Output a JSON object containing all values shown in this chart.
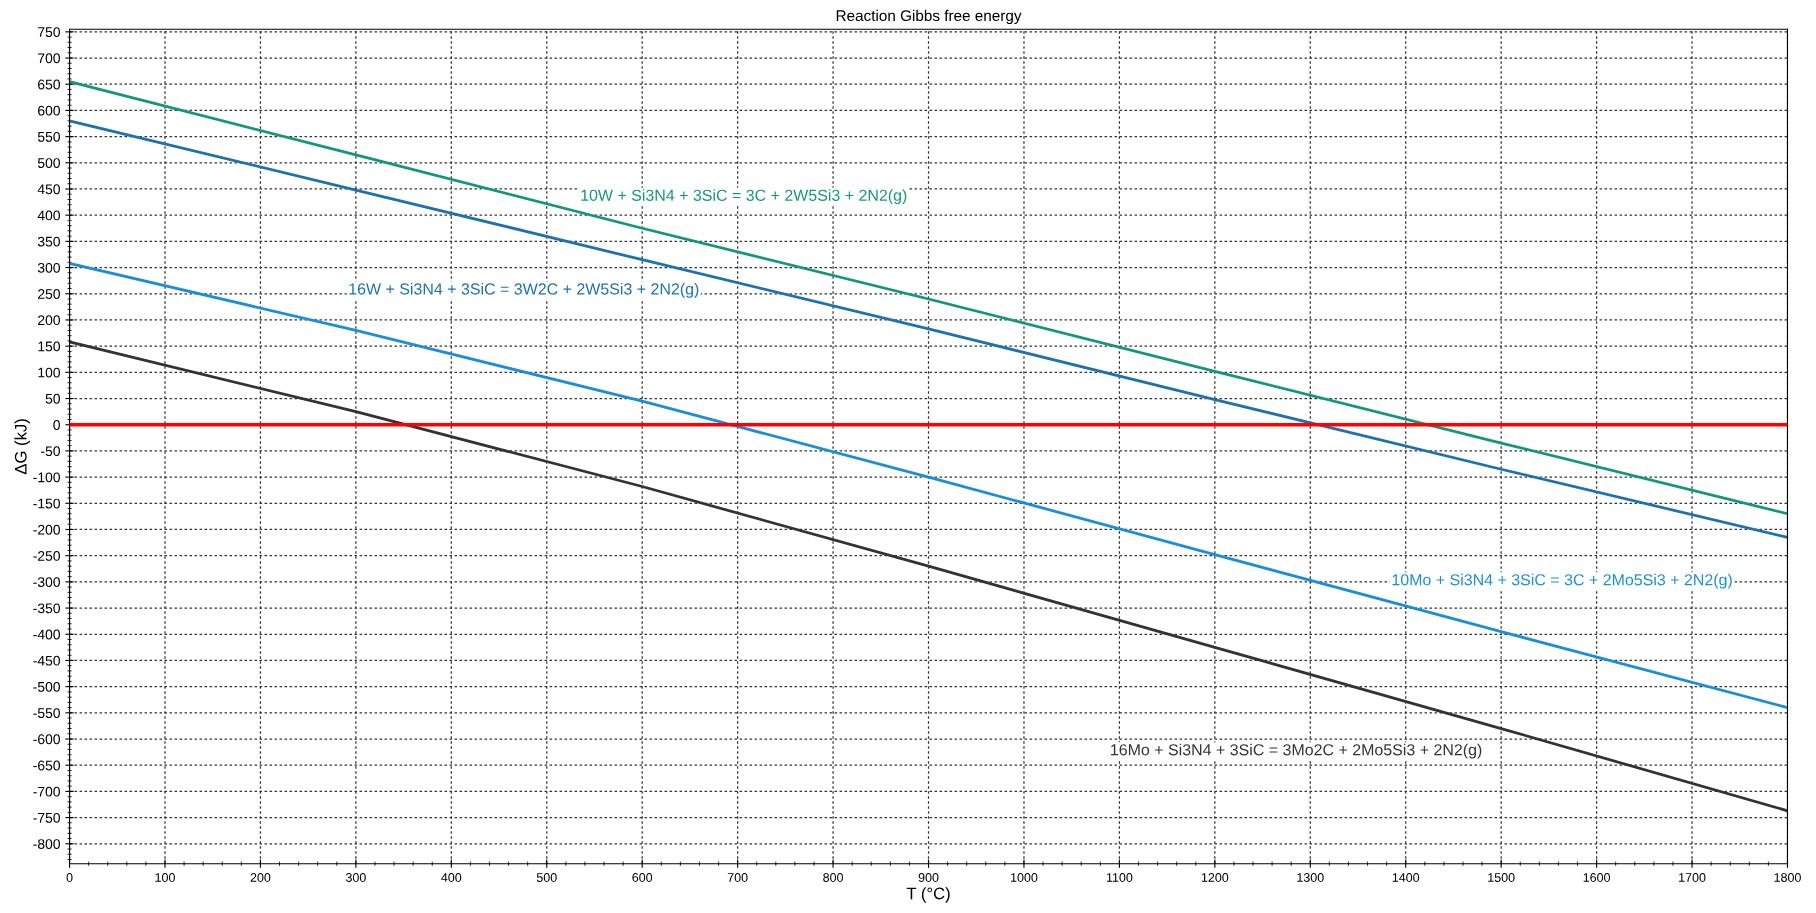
{
  "chart_data": {
    "type": "line",
    "title": "Reaction Gibbs free energy",
    "xlabel": "T (°C)",
    "ylabel": "ΔG (kJ)",
    "x": [
      0,
      300,
      600,
      900,
      1200,
      1500,
      1800
    ],
    "series": [
      {
        "name": "10W + Si3N4 + 3SiC = 3C + 2W5Si3 + 2N2(g)",
        "color": "#13977a",
        "values": [
          655,
          515,
          375,
          240,
          102,
          -35,
          -170
        ]
      },
      {
        "name": "16W + Si3N4 + 3SiC = 3W2C + 2W5Si3 + 2N2(g)",
        "color": "#1c72b0",
        "values": [
          580,
          448,
          315,
          183,
          48,
          -85,
          -215
        ]
      },
      {
        "name": "10Mo + Si3N4 + 3SiC = 3C + 2Mo5Si3 + 2N2(g)",
        "color": "#1a8ed8",
        "values": [
          308,
          180,
          45,
          -100,
          -248,
          -395,
          -540
        ]
      },
      {
        "name": "16Mo + Si3N4 + 3SiC = 3Mo2C + 2Mo5Si3 + 2N2(g)",
        "color": "#333333",
        "values": [
          158,
          25,
          -118,
          -270,
          -425,
          -580,
          -737
        ]
      }
    ],
    "ref_lines": [
      {
        "axis": "y",
        "value": 0,
        "color": "#ff0000"
      }
    ],
    "xlim": [
      0,
      1800
    ],
    "xticks": [
      0,
      100,
      200,
      300,
      400,
      500,
      600,
      700,
      800,
      900,
      1000,
      1100,
      1200,
      1300,
      1400,
      1500,
      1600,
      1700,
      1800
    ],
    "ylim": [
      -838,
      755
    ],
    "yticks": [
      -800,
      -750,
      -700,
      -650,
      -600,
      -550,
      -500,
      -450,
      -400,
      -350,
      -300,
      -250,
      -200,
      -150,
      -100,
      -50,
      0,
      50,
      100,
      150,
      200,
      250,
      300,
      350,
      400,
      450,
      500,
      550,
      600,
      650,
      700,
      750
    ],
    "grid": true,
    "legend": false,
    "marker": "none",
    "line_style": "solid"
  }
}
